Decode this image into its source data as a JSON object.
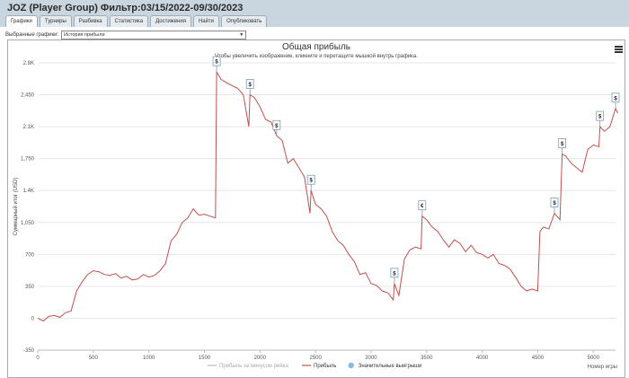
{
  "page": {
    "title": "JOZ (Player Group) Фильтр:03/15/2022-09/30/2023"
  },
  "tabs": [
    {
      "label": "Графики"
    },
    {
      "label": "Турниры"
    },
    {
      "label": "Разбивка"
    },
    {
      "label": "Статистика"
    },
    {
      "label": "Достижения"
    },
    {
      "label": "Найти"
    },
    {
      "label": "Опубликовать"
    }
  ],
  "selector": {
    "label": "Выбранные графики:",
    "value": "История прибыли"
  },
  "chart_data": {
    "type": "line",
    "title": "Общая прибыль",
    "subtitle": "Чтобы увеличить изображение, кликните и перетащите мышкой внутрь графика.",
    "xlabel": "Номер игры",
    "ylabel": "Суммарный итог (USD)",
    "xlim": [
      0,
      5200
    ],
    "ylim": [
      -350,
      2800
    ],
    "x_ticks": [
      "0",
      "500",
      "1000",
      "1500",
      "2000",
      "2500",
      "3000",
      "3500",
      "4000",
      "4500",
      "5000"
    ],
    "y_ticks": [
      "-350",
      "0",
      "350",
      "700",
      "1,050",
      "1.4K",
      "1,750",
      "2.1K",
      "2,450",
      "2.8K"
    ],
    "y_tick_values": [
      -350,
      0,
      350,
      700,
      1050,
      1400,
      1750,
      2100,
      2450,
      2800
    ],
    "series": [
      {
        "name": "Прибыль",
        "color": "#c0504d",
        "points": [
          [
            0,
            0
          ],
          [
            50,
            -30
          ],
          [
            100,
            20
          ],
          [
            150,
            30
          ],
          [
            200,
            10
          ],
          [
            250,
            60
          ],
          [
            300,
            80
          ],
          [
            350,
            300
          ],
          [
            400,
            400
          ],
          [
            450,
            480
          ],
          [
            500,
            520
          ],
          [
            550,
            510
          ],
          [
            600,
            480
          ],
          [
            650,
            470
          ],
          [
            700,
            490
          ],
          [
            750,
            440
          ],
          [
            800,
            460
          ],
          [
            850,
            420
          ],
          [
            900,
            430
          ],
          [
            950,
            480
          ],
          [
            1000,
            450
          ],
          [
            1050,
            470
          ],
          [
            1100,
            520
          ],
          [
            1150,
            600
          ],
          [
            1200,
            850
          ],
          [
            1250,
            920
          ],
          [
            1300,
            1050
          ],
          [
            1350,
            1100
          ],
          [
            1400,
            1200
          ],
          [
            1450,
            1130
          ],
          [
            1500,
            1140
          ],
          [
            1550,
            1120
          ],
          [
            1600,
            1100
          ],
          [
            1610,
            2700
          ],
          [
            1650,
            2620
          ],
          [
            1700,
            2580
          ],
          [
            1750,
            2550
          ],
          [
            1800,
            2520
          ],
          [
            1850,
            2450
          ],
          [
            1900,
            2100
          ],
          [
            1910,
            2450
          ],
          [
            1950,
            2420
          ],
          [
            2000,
            2320
          ],
          [
            2050,
            2180
          ],
          [
            2100,
            2150
          ],
          [
            2150,
            2000
          ],
          [
            2200,
            1950
          ],
          [
            2250,
            1700
          ],
          [
            2300,
            1750
          ],
          [
            2350,
            1650
          ],
          [
            2400,
            1550
          ],
          [
            2450,
            1150
          ],
          [
            2460,
            1400
          ],
          [
            2500,
            1250
          ],
          [
            2550,
            1200
          ],
          [
            2600,
            1120
          ],
          [
            2650,
            950
          ],
          [
            2700,
            850
          ],
          [
            2750,
            800
          ],
          [
            2800,
            700
          ],
          [
            2850,
            620
          ],
          [
            2900,
            480
          ],
          [
            2950,
            500
          ],
          [
            3000,
            380
          ],
          [
            3050,
            360
          ],
          [
            3100,
            300
          ],
          [
            3150,
            280
          ],
          [
            3200,
            200
          ],
          [
            3210,
            380
          ],
          [
            3250,
            250
          ],
          [
            3300,
            650
          ],
          [
            3350,
            750
          ],
          [
            3400,
            780
          ],
          [
            3450,
            760
          ],
          [
            3460,
            1120
          ],
          [
            3500,
            1080
          ],
          [
            3550,
            1000
          ],
          [
            3600,
            950
          ],
          [
            3650,
            860
          ],
          [
            3700,
            780
          ],
          [
            3750,
            860
          ],
          [
            3800,
            820
          ],
          [
            3850,
            730
          ],
          [
            3900,
            800
          ],
          [
            3950,
            720
          ],
          [
            4000,
            700
          ],
          [
            4050,
            660
          ],
          [
            4100,
            700
          ],
          [
            4150,
            600
          ],
          [
            4200,
            580
          ],
          [
            4250,
            540
          ],
          [
            4300,
            450
          ],
          [
            4350,
            350
          ],
          [
            4400,
            300
          ],
          [
            4450,
            320
          ],
          [
            4500,
            300
          ],
          [
            4520,
            950
          ],
          [
            4550,
            1000
          ],
          [
            4600,
            980
          ],
          [
            4650,
            1150
          ],
          [
            4700,
            1080
          ],
          [
            4720,
            1800
          ],
          [
            4750,
            1780
          ],
          [
            4800,
            1700
          ],
          [
            4850,
            1650
          ],
          [
            4900,
            1600
          ],
          [
            4950,
            1850
          ],
          [
            5000,
            1900
          ],
          [
            5050,
            1880
          ],
          [
            5060,
            2100
          ],
          [
            5100,
            2050
          ],
          [
            5150,
            2100
          ],
          [
            5200,
            2300
          ],
          [
            5220,
            2250
          ]
        ]
      }
    ],
    "flags": [
      {
        "x": 1610,
        "y": 2700,
        "label": "$"
      },
      {
        "x": 1910,
        "y": 2450,
        "label": "$"
      },
      {
        "x": 2150,
        "y": 2000,
        "label": "$"
      },
      {
        "x": 2460,
        "y": 1400,
        "label": "$"
      },
      {
        "x": 3210,
        "y": 380,
        "label": "$"
      },
      {
        "x": 3460,
        "y": 1120,
        "label": "€"
      },
      {
        "x": 4650,
        "y": 1150,
        "label": "$"
      },
      {
        "x": 4720,
        "y": 1800,
        "label": "$"
      },
      {
        "x": 5060,
        "y": 2100,
        "label": "$"
      },
      {
        "x": 5200,
        "y": 2300,
        "label": "$"
      }
    ],
    "legend": [
      {
        "label": "Прибыль за минусом рейка",
        "color": "#bbbbbb",
        "style": "line"
      },
      {
        "label": "Прибыль",
        "color": "#c0504d",
        "style": "line"
      },
      {
        "label": "Значительные выигрыши",
        "color": "#8ab8e0",
        "style": "dot"
      }
    ],
    "grid": true,
    "legend_position": "bottom-center"
  }
}
